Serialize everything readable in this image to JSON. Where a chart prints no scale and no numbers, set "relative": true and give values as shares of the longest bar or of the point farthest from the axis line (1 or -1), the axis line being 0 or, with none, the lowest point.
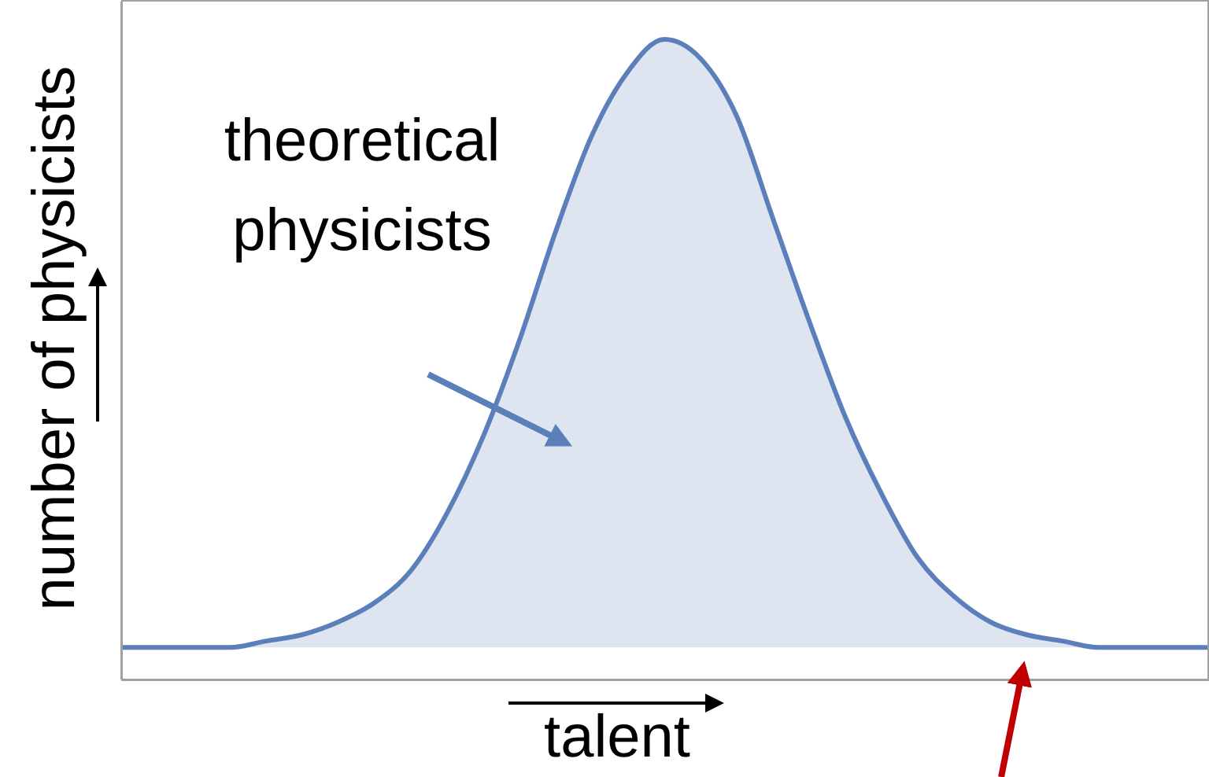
{
  "chart_data": {
    "type": "area",
    "relative": true,
    "xlabel": "talent",
    "ylabel": "number of physicists",
    "annotations": [
      "theoretical physicists"
    ],
    "color": "#5b7fbb",
    "categories": [
      null,
      null,
      null,
      null,
      null,
      null,
      null,
      null,
      null,
      null,
      null,
      null,
      null,
      null,
      null,
      null,
      null,
      null,
      null,
      null,
      null,
      null,
      null,
      null,
      null,
      null,
      null,
      null,
      null,
      null,
      null
    ],
    "values": [
      0.05,
      0.05,
      0.05,
      0.05,
      0.06,
      0.07,
      0.09,
      0.12,
      0.17,
      0.26,
      0.38,
      0.53,
      0.7,
      0.85,
      0.95,
      1,
      0.97,
      0.88,
      0.72,
      0.56,
      0.41,
      0.29,
      0.19,
      0.13,
      0.09,
      0.07,
      0.06,
      0.05,
      0.05,
      0.05,
      0.05
    ]
  }
}
